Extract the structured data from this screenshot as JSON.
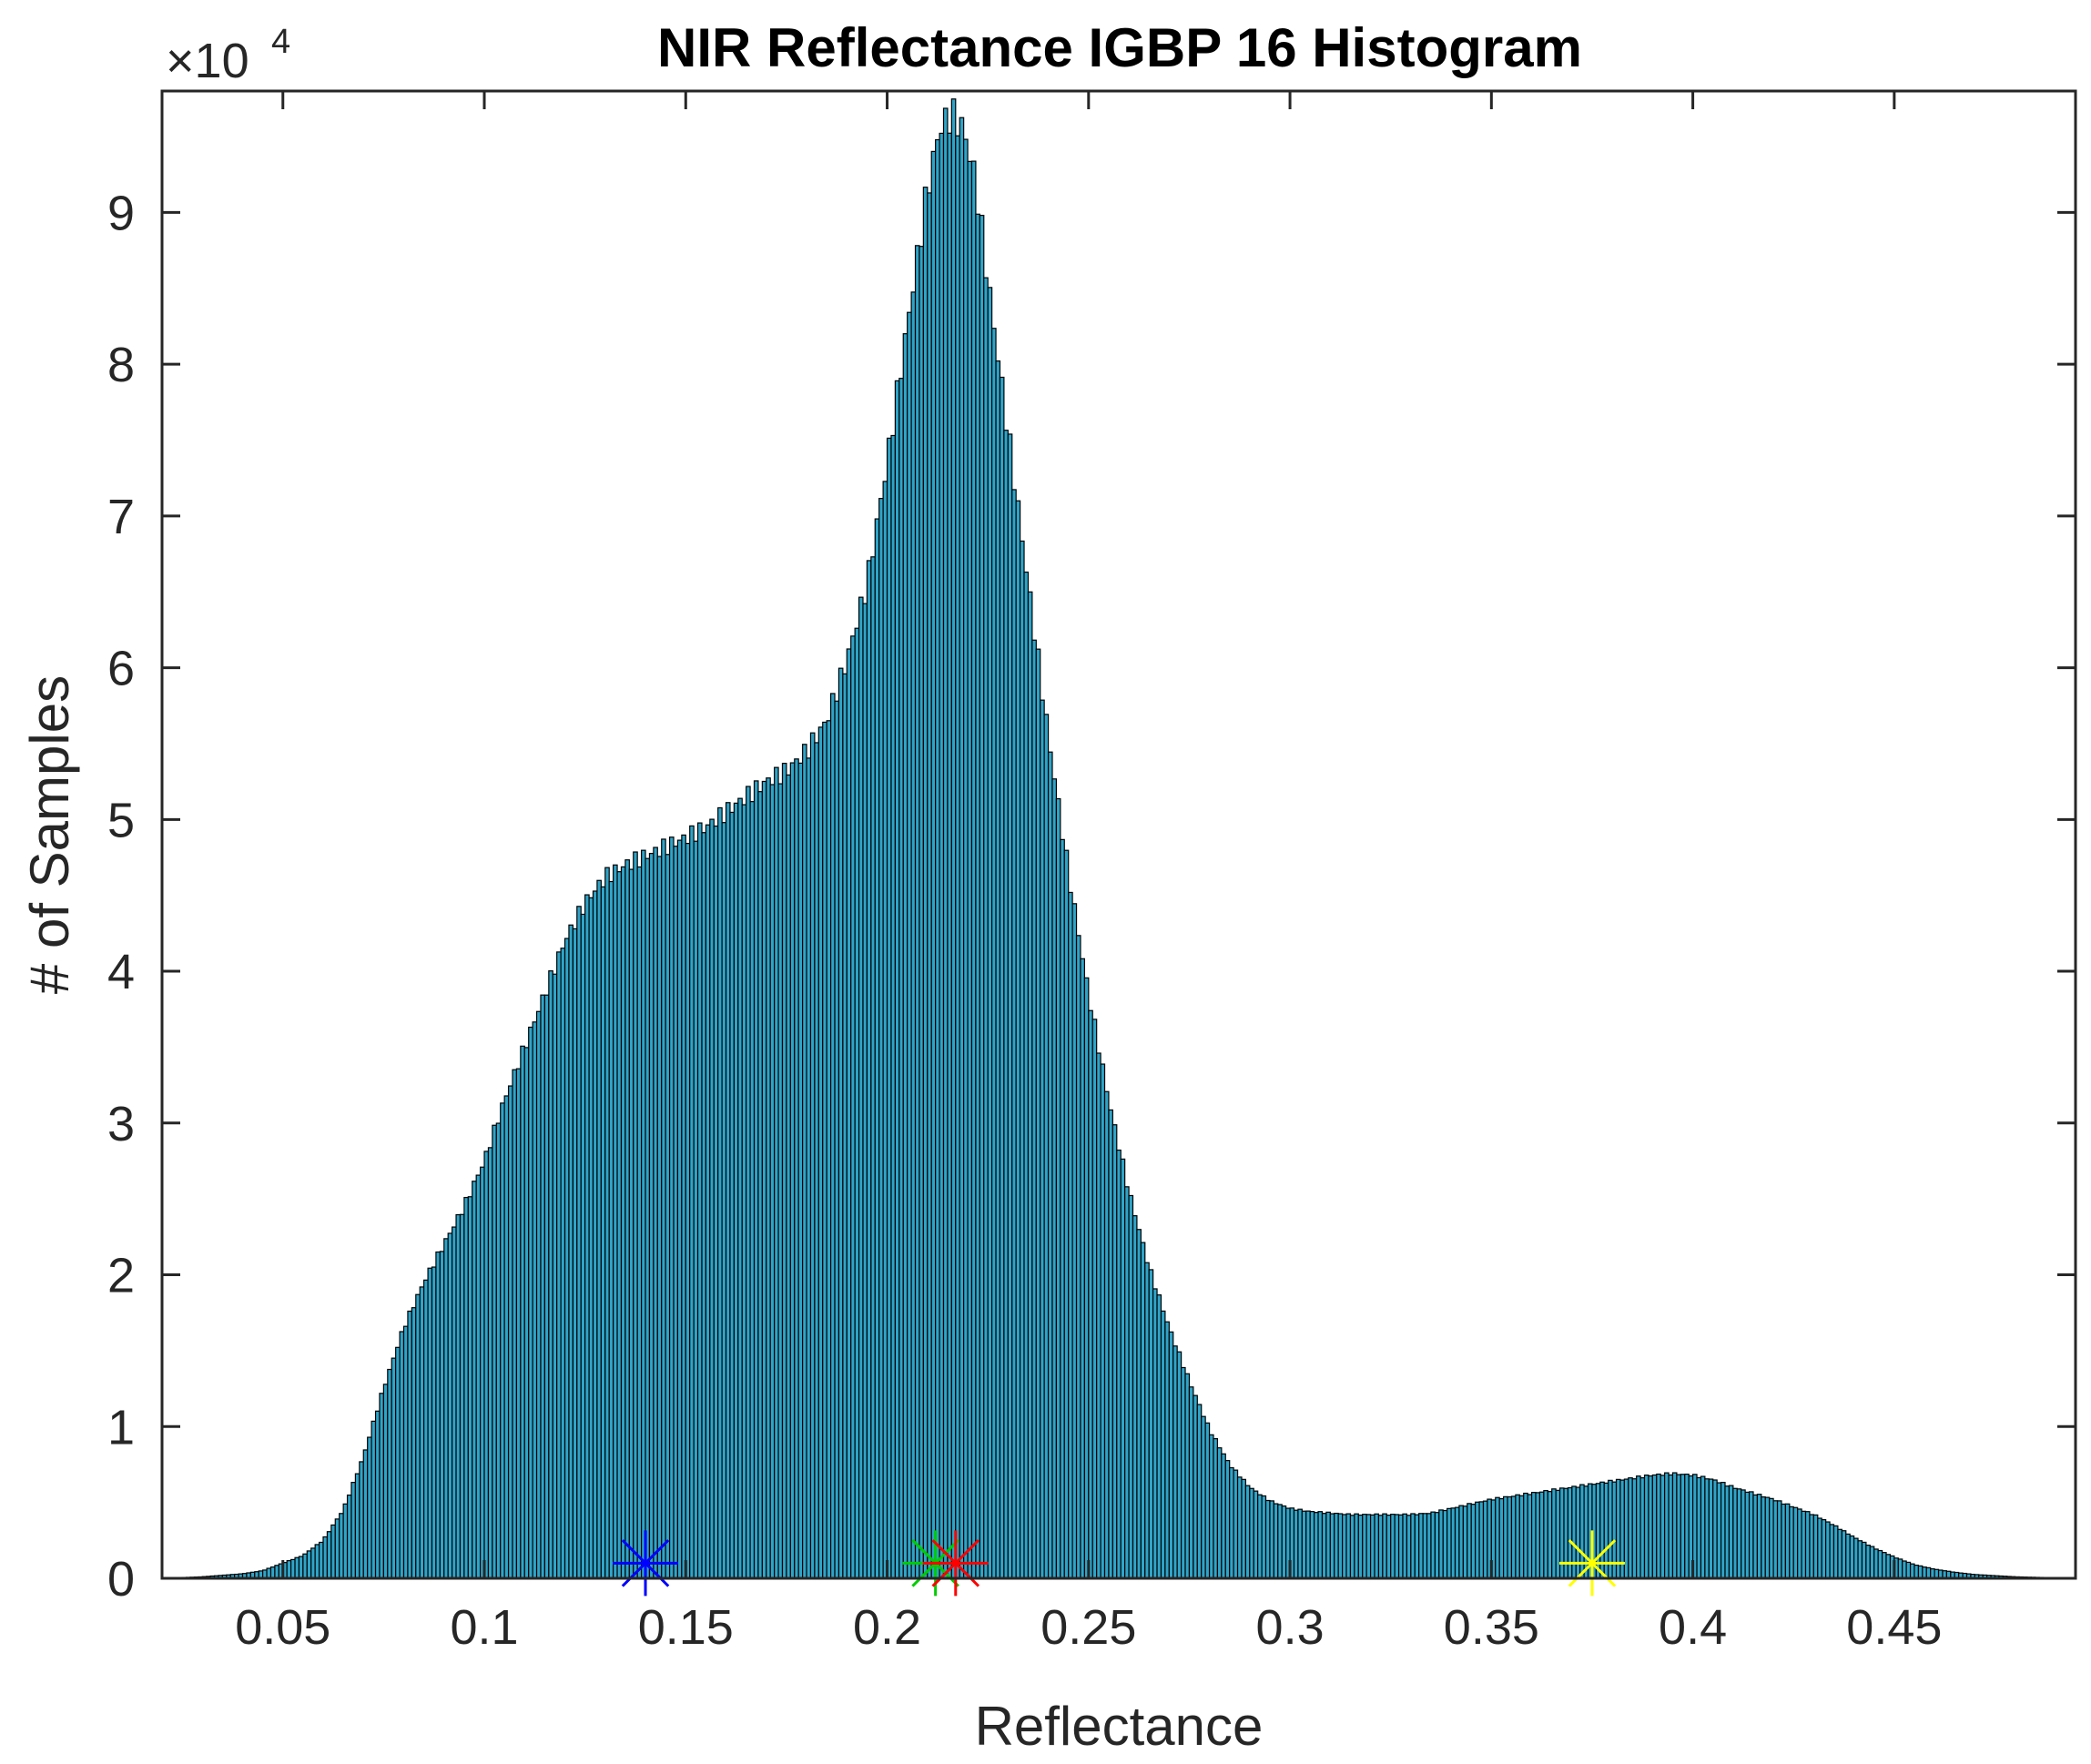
{
  "chart_data": {
    "type": "bar",
    "title": "NIR Reflectance IGBP 16 Histogram",
    "xlabel": "Reflectance",
    "ylabel": "# of Samples",
    "y_multiplier": {
      "base": "×10",
      "exponent": "4"
    },
    "xlim": [
      0.02,
      0.495
    ],
    "ylim": [
      0,
      9.8
    ],
    "y_scale_factor": 10000,
    "x_ticks": [
      0.05,
      0.1,
      0.15,
      0.2,
      0.25,
      0.3,
      0.35,
      0.4,
      0.45
    ],
    "x_tick_labels": [
      "0.05",
      "0.1",
      "0.15",
      "0.2",
      "0.25",
      "0.3",
      "0.35",
      "0.4",
      "0.45"
    ],
    "y_ticks": [
      0,
      1,
      2,
      3,
      4,
      5,
      6,
      7,
      8,
      9
    ],
    "y_tick_labels": [
      "0",
      "1",
      "2",
      "3",
      "4",
      "5",
      "6",
      "7",
      "8",
      "9"
    ],
    "bar_color": "#2fa4c8",
    "bar_edge_color": "#000000",
    "histogram_profile": {
      "bin_width": 0.001,
      "x": [
        0.02,
        0.03,
        0.04,
        0.045,
        0.05,
        0.055,
        0.06,
        0.065,
        0.07,
        0.075,
        0.08,
        0.085,
        0.09,
        0.095,
        0.1,
        0.105,
        0.11,
        0.115,
        0.12,
        0.125,
        0.13,
        0.135,
        0.14,
        0.145,
        0.15,
        0.155,
        0.16,
        0.165,
        0.17,
        0.175,
        0.18,
        0.185,
        0.19,
        0.195,
        0.2,
        0.205,
        0.21,
        0.213,
        0.216,
        0.219,
        0.222,
        0.225,
        0.23,
        0.235,
        0.24,
        0.245,
        0.25,
        0.255,
        0.26,
        0.265,
        0.27,
        0.275,
        0.28,
        0.285,
        0.29,
        0.295,
        0.3,
        0.305,
        0.31,
        0.315,
        0.32,
        0.325,
        0.33,
        0.335,
        0.34,
        0.345,
        0.35,
        0.355,
        0.36,
        0.365,
        0.37,
        0.375,
        0.38,
        0.385,
        0.39,
        0.395,
        0.4,
        0.405,
        0.41,
        0.415,
        0.42,
        0.425,
        0.43,
        0.435,
        0.44,
        0.445,
        0.45,
        0.455,
        0.46,
        0.465,
        0.47,
        0.48,
        0.495
      ],
      "y": [
        0.0,
        0.01,
        0.03,
        0.05,
        0.1,
        0.15,
        0.25,
        0.45,
        0.8,
        1.25,
        1.65,
        1.95,
        2.2,
        2.45,
        2.75,
        3.15,
        3.5,
        3.85,
        4.2,
        4.45,
        4.62,
        4.7,
        4.76,
        4.82,
        4.88,
        4.95,
        5.05,
        5.15,
        5.25,
        5.32,
        5.45,
        5.65,
        6.05,
        6.55,
        7.35,
        8.25,
        9.15,
        9.55,
        9.65,
        9.55,
        9.2,
        8.55,
        7.55,
        6.55,
        5.55,
        4.65,
        3.85,
        3.15,
        2.55,
        2.05,
        1.65,
        1.3,
        0.98,
        0.75,
        0.6,
        0.51,
        0.46,
        0.44,
        0.43,
        0.42,
        0.42,
        0.42,
        0.42,
        0.43,
        0.46,
        0.49,
        0.52,
        0.54,
        0.56,
        0.58,
        0.6,
        0.62,
        0.64,
        0.66,
        0.68,
        0.69,
        0.68,
        0.65,
        0.6,
        0.56,
        0.52,
        0.47,
        0.42,
        0.35,
        0.27,
        0.2,
        0.14,
        0.09,
        0.06,
        0.04,
        0.025,
        0.01,
        0.0
      ]
    },
    "markers": [
      {
        "x": 0.14,
        "y": 0.1,
        "color": "#0000ff",
        "symbol": "asterisk"
      },
      {
        "x": 0.212,
        "y": 0.1,
        "color": "#00cc00",
        "symbol": "asterisk"
      },
      {
        "x": 0.217,
        "y": 0.1,
        "color": "#ff0000",
        "symbol": "asterisk"
      },
      {
        "x": 0.375,
        "y": 0.1,
        "color": "#ffff00",
        "symbol": "asterisk"
      }
    ],
    "grid": false,
    "legend": "none"
  }
}
